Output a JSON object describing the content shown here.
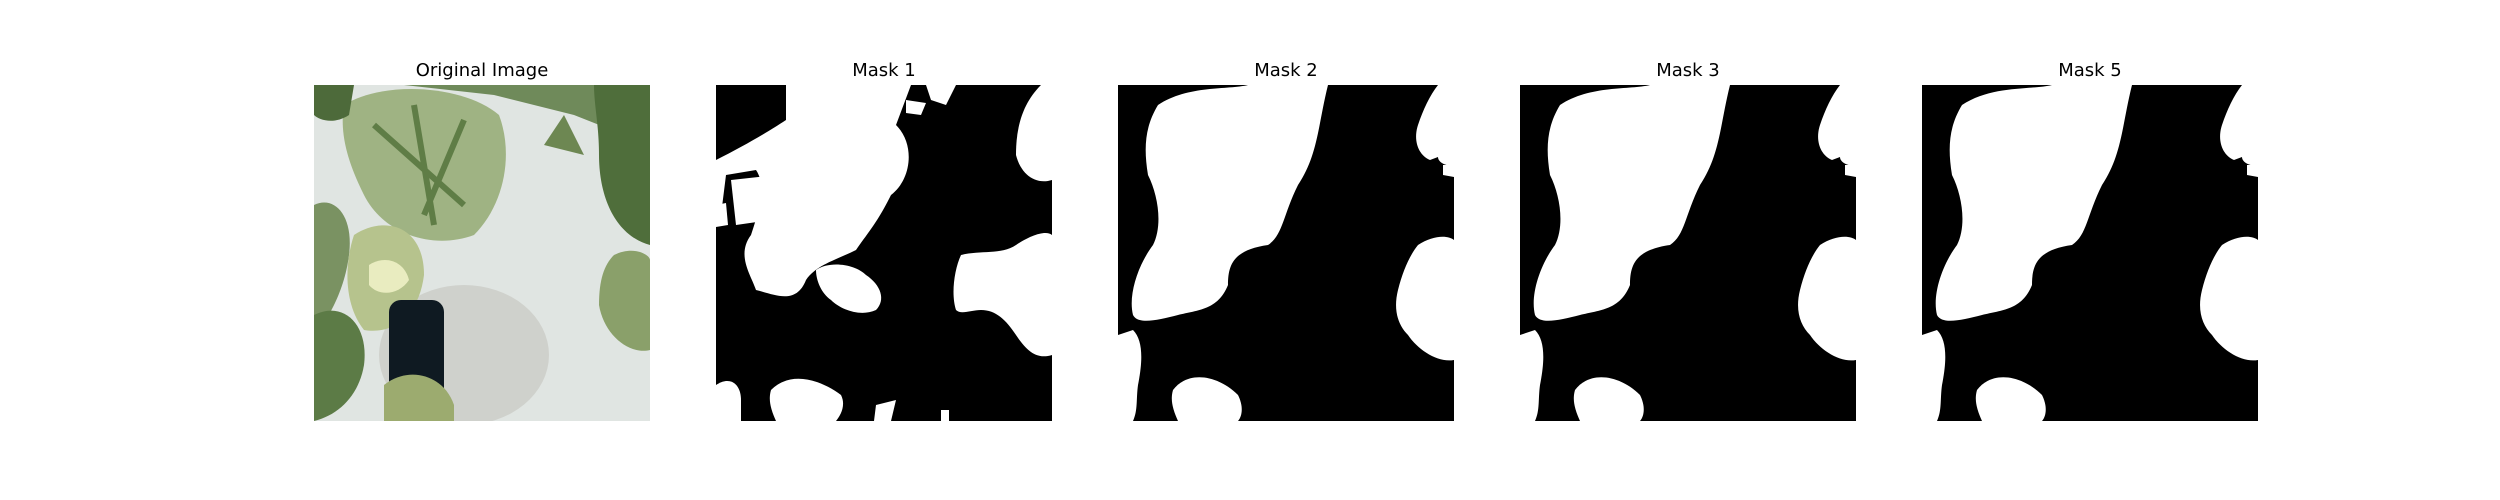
{
  "figure": {
    "panels": [
      {
        "title": "Original Image",
        "kind": "photo"
      },
      {
        "title": "Mask 1",
        "kind": "mask"
      },
      {
        "title": "Mask 2",
        "kind": "mask"
      },
      {
        "title": "Mask 3",
        "kind": "mask"
      },
      {
        "title": "Mask 5",
        "kind": "mask"
      }
    ]
  },
  "colors": {
    "mask_foreground": "#ffffff",
    "mask_background": "#000000",
    "leaf_dark": "#4e6f3c",
    "leaf_light": "#b9c79a",
    "wall": "#e3e7e4",
    "pot": "#101a22"
  }
}
